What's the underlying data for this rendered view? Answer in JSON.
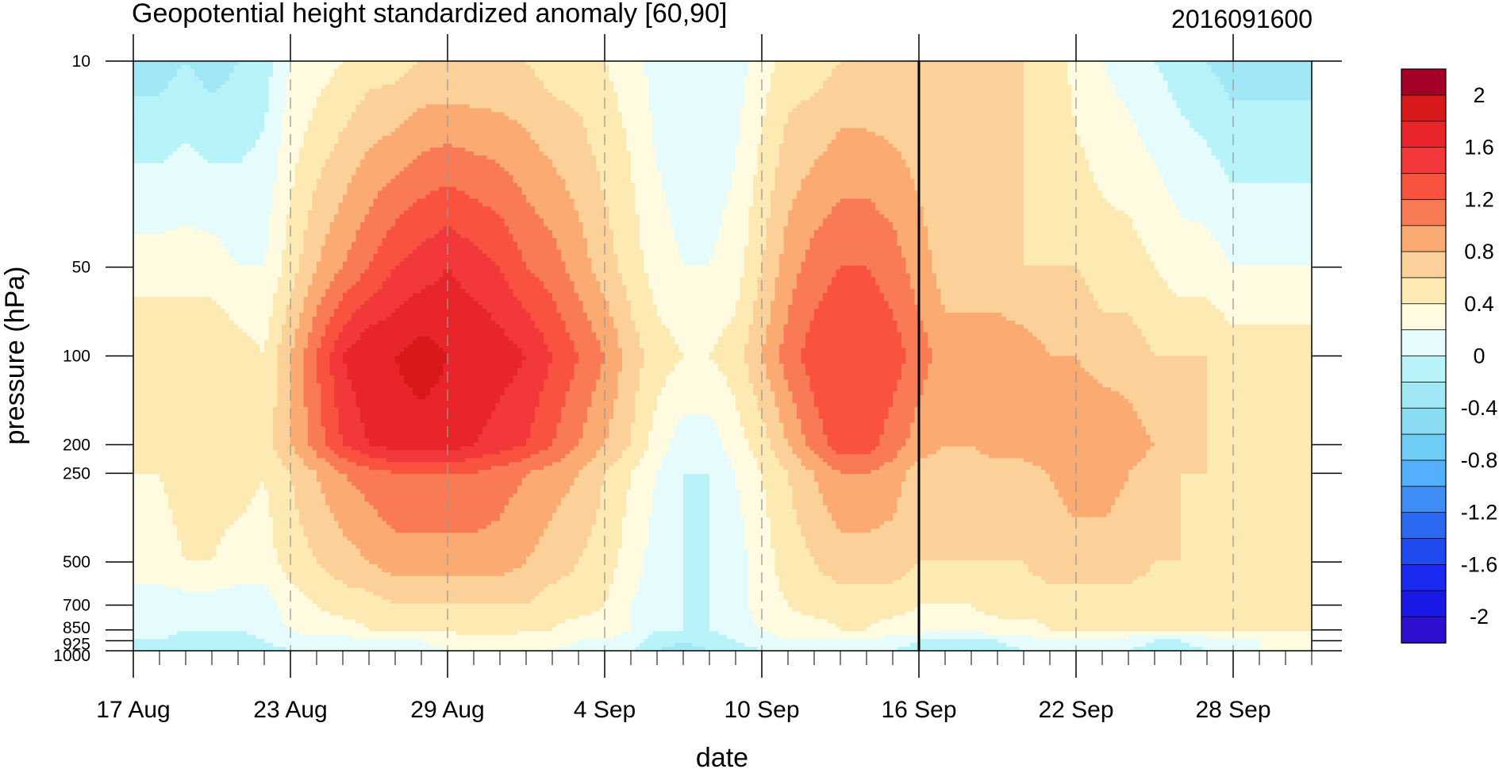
{
  "chart_data": {
    "type": "heatmap",
    "title": "Geopotential height standardized anomaly [60,90]",
    "date_label": "2016091600",
    "xlabel": "date",
    "ylabel": "pressure (hPa)",
    "x_tick_labels": [
      "17 Aug",
      "23 Aug",
      "29 Aug",
      "4 Sep",
      "10 Sep",
      "16 Sep",
      "22 Sep",
      "28 Sep"
    ],
    "y_tick_labels": [
      "10",
      "50",
      "100",
      "200",
      "250",
      "500",
      "700",
      "850",
      "925",
      "1000"
    ],
    "y_levels_hPa": [
      10,
      50,
      100,
      200,
      250,
      500,
      700,
      850,
      925,
      1000
    ],
    "x_days": [
      "17 Aug",
      "18 Aug",
      "19 Aug",
      "20 Aug",
      "21 Aug",
      "22 Aug",
      "23 Aug",
      "24 Aug",
      "25 Aug",
      "26 Aug",
      "27 Aug",
      "28 Aug",
      "29 Aug",
      "30 Aug",
      "31 Aug",
      "1 Sep",
      "2 Sep",
      "3 Sep",
      "4 Sep",
      "5 Sep",
      "6 Sep",
      "7 Sep",
      "8 Sep",
      "9 Sep",
      "10 Sep",
      "11 Sep",
      "12 Sep",
      "13 Sep",
      "14 Sep",
      "15 Sep",
      "16 Sep",
      "17 Sep",
      "18 Sep",
      "19 Sep",
      "20 Sep",
      "21 Sep",
      "22 Sep",
      "23 Sep",
      "24 Sep",
      "25 Sep",
      "26 Sep",
      "27 Sep",
      "28 Sep",
      "29 Sep",
      "30 Sep",
      "1 Oct"
    ],
    "current_date": "16 Sep",
    "colorbar": {
      "labels": [
        "2",
        "1.6",
        "1.2",
        "0.8",
        "0.4",
        "0",
        "-0.4",
        "-0.8",
        "-1.2",
        "-1.6",
        "-2"
      ],
      "boundaries": [
        2.2,
        2,
        1.8,
        1.6,
        1.4,
        1.2,
        1,
        0.8,
        0.6,
        0.4,
        0.2,
        0,
        -0.2,
        -0.4,
        -0.6,
        -0.8,
        -1,
        -1.2,
        -1.4,
        -1.6,
        -1.8,
        -2,
        -2.2
      ],
      "colors": [
        "#a50026",
        "#d7191c",
        "#e8252b",
        "#f2383a",
        "#f9533f",
        "#f97b55",
        "#fbaa72",
        "#fcd199",
        "#fde9b2",
        "#fffbe0",
        "#e6fcfc",
        "#b7f3f8",
        "#a0e8f5",
        "#8adcf3",
        "#6ecdf5",
        "#55afff",
        "#3d8df5",
        "#2b6af0",
        "#1f4af0",
        "#1a2af0",
        "#1a18e4",
        "#2d10cf"
      ]
    },
    "levels_step": 0.2,
    "values": [
      [
        -0.3,
        -0.3,
        -0.2,
        -0.3,
        -0.2,
        -0.1,
        0.2,
        0.3,
        0.4,
        0.5,
        0.5,
        0.6,
        0.6,
        0.6,
        0.6,
        0.6,
        0.5,
        0.5,
        0.4,
        0.3,
        0.1,
        0.0,
        0.0,
        0.1,
        0.3,
        0.5,
        0.5,
        0.6,
        0.6,
        0.6,
        0.6,
        0.6,
        0.6,
        0.6,
        0.6,
        0.6,
        0.3,
        0.2,
        0.1,
        0.0,
        -0.1,
        -0.2,
        -0.3,
        -0.3,
        -0.3,
        -0.3
      ],
      [
        0.3,
        0.3,
        0.3,
        0.3,
        0.2,
        0.2,
        0.5,
        0.8,
        1.0,
        1.2,
        1.4,
        1.5,
        1.6,
        1.5,
        1.4,
        1.2,
        1.1,
        0.9,
        0.7,
        0.5,
        0.3,
        0.2,
        0.2,
        0.3,
        0.6,
        0.9,
        1.1,
        1.2,
        1.2,
        1.1,
        0.9,
        0.7,
        0.7,
        0.7,
        0.6,
        0.6,
        0.6,
        0.5,
        0.5,
        0.4,
        0.3,
        0.3,
        0.2,
        0.2,
        0.2,
        0.2
      ],
      [
        0.6,
        0.6,
        0.6,
        0.6,
        0.5,
        0.4,
        0.8,
        1.2,
        1.6,
        1.8,
        1.8,
        1.9,
        1.8,
        1.8,
        1.7,
        1.6,
        1.4,
        1.2,
        1.0,
        0.7,
        0.5,
        0.4,
        0.4,
        0.5,
        0.8,
        1.1,
        1.3,
        1.4,
        1.4,
        1.3,
        1.1,
        0.9,
        0.9,
        0.9,
        0.9,
        0.8,
        0.8,
        0.7,
        0.7,
        0.6,
        0.6,
        0.6,
        0.5,
        0.5,
        0.5,
        0.5
      ],
      [
        0.5,
        0.5,
        0.5,
        0.6,
        0.6,
        0.5,
        0.8,
        1.1,
        1.4,
        1.6,
        1.7,
        1.7,
        1.7,
        1.6,
        1.5,
        1.4,
        1.2,
        1.0,
        0.8,
        0.6,
        0.3,
        0.1,
        0.1,
        0.3,
        0.5,
        0.8,
        1.1,
        1.3,
        1.3,
        1.1,
        0.9,
        0.8,
        0.8,
        0.9,
        0.9,
        1.0,
        1.0,
        1.0,
        0.9,
        0.8,
        0.7,
        0.6,
        0.6,
        0.6,
        0.6,
        0.6
      ],
      [
        0.4,
        0.4,
        0.5,
        0.5,
        0.5,
        0.4,
        0.6,
        0.8,
        1.0,
        1.1,
        1.2,
        1.2,
        1.2,
        1.2,
        1.1,
        1.0,
        0.9,
        0.8,
        0.6,
        0.4,
        0.2,
        0.0,
        0.0,
        0.2,
        0.4,
        0.6,
        0.8,
        1.0,
        1.0,
        0.9,
        0.7,
        0.7,
        0.7,
        0.7,
        0.7,
        0.8,
        0.9,
        0.9,
        0.8,
        0.7,
        0.6,
        0.6,
        0.6,
        0.6,
        0.6,
        0.6
      ],
      [
        0.3,
        0.3,
        0.4,
        0.4,
        0.3,
        0.3,
        0.5,
        0.6,
        0.7,
        0.8,
        0.9,
        0.9,
        0.9,
        0.9,
        0.9,
        0.8,
        0.7,
        0.6,
        0.5,
        0.3,
        0.1,
        0.0,
        0.0,
        0.1,
        0.3,
        0.5,
        0.6,
        0.7,
        0.7,
        0.7,
        0.6,
        0.6,
        0.6,
        0.6,
        0.6,
        0.7,
        0.7,
        0.7,
        0.7,
        0.6,
        0.6,
        0.6,
        0.6,
        0.6,
        0.6,
        0.6
      ],
      [
        0.1,
        0.1,
        0.1,
        0.1,
        0.1,
        0.1,
        0.3,
        0.4,
        0.5,
        0.5,
        0.6,
        0.6,
        0.6,
        0.6,
        0.6,
        0.6,
        0.5,
        0.5,
        0.4,
        0.2,
        0.1,
        0.0,
        0.0,
        0.1,
        0.3,
        0.4,
        0.5,
        0.5,
        0.5,
        0.5,
        0.4,
        0.4,
        0.4,
        0.5,
        0.5,
        0.5,
        0.5,
        0.5,
        0.5,
        0.5,
        0.5,
        0.5,
        0.5,
        0.5,
        0.5,
        0.5
      ],
      [
        0.1,
        0.1,
        0.0,
        0.0,
        0.0,
        0.1,
        0.2,
        0.3,
        0.3,
        0.4,
        0.4,
        0.4,
        0.4,
        0.5,
        0.5,
        0.4,
        0.4,
        0.3,
        0.3,
        0.2,
        0.0,
        0.0,
        0.0,
        0.1,
        0.2,
        0.3,
        0.3,
        0.4,
        0.4,
        0.3,
        0.3,
        0.2,
        0.3,
        0.3,
        0.3,
        0.4,
        0.4,
        0.4,
        0.4,
        0.4,
        0.4,
        0.4,
        0.4,
        0.4,
        0.4,
        0.4
      ],
      [
        0.0,
        0.0,
        -0.1,
        -0.1,
        -0.1,
        0.0,
        0.1,
        0.1,
        0.1,
        0.2,
        0.2,
        0.2,
        0.3,
        0.3,
        0.3,
        0.3,
        0.3,
        0.2,
        0.2,
        0.1,
        -0.1,
        -0.2,
        -0.1,
        0.0,
        0.1,
        0.2,
        0.2,
        0.2,
        0.2,
        0.1,
        0.0,
        -0.1,
        -0.1,
        0.0,
        0.1,
        0.2,
        0.2,
        0.2,
        0.1,
        0.0,
        0.0,
        0.1,
        0.2,
        0.2,
        0.3,
        0.3
      ],
      [
        0.0,
        0.0,
        -0.1,
        -0.2,
        -0.2,
        -0.1,
        0.0,
        0.0,
        0.0,
        0.1,
        0.1,
        0.1,
        0.2,
        0.2,
        0.2,
        0.2,
        0.2,
        0.1,
        0.1,
        0.0,
        -0.2,
        -0.3,
        -0.2,
        -0.1,
        0.0,
        0.1,
        0.1,
        0.1,
        0.1,
        0.0,
        -0.1,
        -0.2,
        -0.2,
        -0.1,
        0.0,
        0.1,
        0.1,
        0.1,
        0.0,
        -0.1,
        -0.1,
        0.0,
        0.1,
        0.2,
        0.2,
        0.2
      ]
    ]
  }
}
